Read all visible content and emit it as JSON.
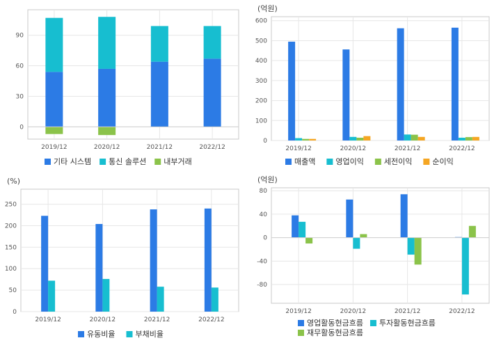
{
  "colors": {
    "blue": "#2c7be5",
    "cyan": "#17bed0",
    "green": "#8bc34a",
    "orange": "#f5a623",
    "grid": "#e6e6e6",
    "axis": "#c8c8c8",
    "text": "#555555"
  },
  "chart_data": [
    {
      "type": "bar",
      "stacked": true,
      "unit": "",
      "categories": [
        "2019/12",
        "2020/12",
        "2021/12",
        "2022/12"
      ],
      "ylim": [
        -12,
        115
      ],
      "yticks": [
        0,
        30,
        60,
        90
      ],
      "grid": true,
      "legend_position": "bottom",
      "series": [
        {
          "name": "기타 시스템",
          "color": "blue",
          "values": [
            54,
            57,
            64,
            67
          ]
        },
        {
          "name": "통신 솔루션",
          "color": "cyan",
          "values": [
            53,
            51,
            35,
            32
          ]
        },
        {
          "name": "내부거래",
          "color": "green",
          "values": [
            -7,
            -8,
            0,
            0
          ]
        }
      ]
    },
    {
      "type": "bar",
      "stacked": false,
      "unit": "(억원)",
      "categories": [
        "2019/12",
        "2020/12",
        "2021/12",
        "2022/12"
      ],
      "ylim": [
        0,
        620
      ],
      "yticks": [
        0,
        100,
        200,
        300,
        400,
        500,
        600
      ],
      "grid": true,
      "legend_position": "bottom",
      "series": [
        {
          "name": "매출액",
          "color": "blue",
          "values": [
            495,
            456,
            562,
            565
          ]
        },
        {
          "name": "영업이익",
          "color": "cyan",
          "values": [
            12,
            18,
            30,
            14
          ]
        },
        {
          "name": "세전이익",
          "color": "green",
          "values": [
            8,
            14,
            29,
            17
          ]
        },
        {
          "name": "순이익",
          "color": "orange",
          "values": [
            8,
            22,
            18,
            18
          ]
        }
      ]
    },
    {
      "type": "bar",
      "stacked": false,
      "unit": "(%)",
      "categories": [
        "2019/12",
        "2020/12",
        "2021/12",
        "2022/12"
      ],
      "ylim": [
        0,
        285
      ],
      "yticks": [
        0,
        50,
        100,
        150,
        200,
        250
      ],
      "grid": true,
      "legend_position": "bottom",
      "series": [
        {
          "name": "유동비율",
          "color": "blue",
          "values": [
            223,
            204,
            238,
            240
          ]
        },
        {
          "name": "부채비율",
          "color": "cyan",
          "values": [
            72,
            76,
            58,
            56
          ]
        }
      ]
    },
    {
      "type": "bar",
      "stacked": false,
      "unit": "(억원)",
      "categories": [
        "2019/12",
        "2020/12",
        "2021/12",
        "2022/12"
      ],
      "ylim": [
        -112,
        85
      ],
      "yticks": [
        -80,
        -40,
        0,
        40,
        80
      ],
      "grid": true,
      "legend_position": "bottom",
      "series": [
        {
          "name": "영업활동현금흐름",
          "color": "blue",
          "values": [
            38,
            65,
            74,
            1
          ]
        },
        {
          "name": "투자활동현금흐름",
          "color": "cyan",
          "values": [
            27,
            -19,
            -29,
            -97
          ]
        },
        {
          "name": "재무활동현금흐름",
          "color": "green",
          "values": [
            -10,
            6,
            -46,
            20
          ]
        }
      ]
    }
  ]
}
